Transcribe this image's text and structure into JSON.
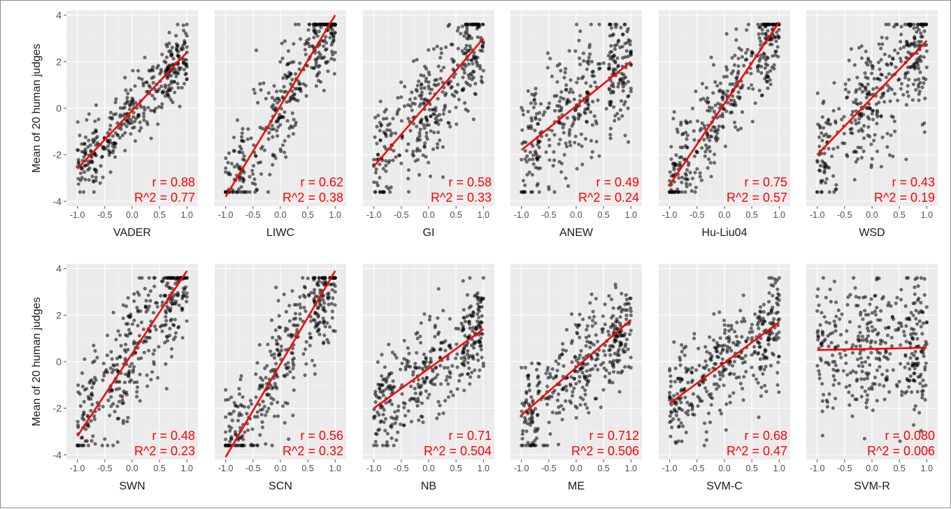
{
  "chart_data": {
    "type": "scatter",
    "ylabel": "Mean of 20 human judges",
    "xlim": [
      -1.2,
      1.2
    ],
    "ylim": [
      -4.2,
      4.2
    ],
    "xticks": [
      -1.0,
      -0.5,
      0.0,
      0.5,
      1.0
    ],
    "xtick_labels": [
      "-1.0",
      "-0.5",
      "0.0",
      "0.5",
      "1.0"
    ],
    "yticks": [
      -4,
      -2,
      0,
      2,
      4
    ],
    "ytick_labels": [
      "-4",
      "-2",
      "0",
      "2",
      "4"
    ],
    "grid": true,
    "point_color": "#000000",
    "fit_line_color": "#ff0000",
    "stat_color": "#ff0000",
    "panel_background": "#ebebeb",
    "panels": [
      {
        "name": "VADER",
        "r_text": "r = 0.88",
        "r2_text": "R^2 = 0.77",
        "r": 0.88,
        "r2": 0.77,
        "fit": {
          "x": [
            -1.0,
            1.0
          ],
          "y": [
            -2.6,
            2.4
          ]
        }
      },
      {
        "name": "LIWC",
        "r_text": "r = 0.62",
        "r2_text": "R^2 = 0.38",
        "r": 0.62,
        "r2": 0.38,
        "fit": {
          "x": [
            -1.0,
            1.0
          ],
          "y": [
            -3.8,
            4.0
          ]
        }
      },
      {
        "name": "GI",
        "r_text": "r = 0.58",
        "r2_text": "R^2 = 0.33",
        "r": 0.58,
        "r2": 0.33,
        "fit": {
          "x": [
            -1.0,
            1.0
          ],
          "y": [
            -2.5,
            3.0
          ]
        }
      },
      {
        "name": "ANEW",
        "r_text": "r = 0.49",
        "r2_text": "R^2 = 0.24",
        "r": 0.49,
        "r2": 0.24,
        "fit": {
          "x": [
            -1.0,
            1.0
          ],
          "y": [
            -1.8,
            2.0
          ]
        }
      },
      {
        "name": "Hu-Liu04",
        "r_text": "r = 0.75",
        "r2_text": "R^2 = 0.57",
        "r": 0.75,
        "r2": 0.57,
        "fit": {
          "x": [
            -1.0,
            1.0
          ],
          "y": [
            -3.3,
            3.7
          ]
        }
      },
      {
        "name": "WSD",
        "r_text": "r = 0.43",
        "r2_text": "R^2 = 0.19",
        "r": 0.43,
        "r2": 0.19,
        "fit": {
          "x": [
            -1.0,
            1.0
          ],
          "y": [
            -2.0,
            2.9
          ]
        }
      },
      {
        "name": "SWN",
        "r_text": "r = 0.48",
        "r2_text": "R^2 = 0.23",
        "r": 0.48,
        "r2": 0.23,
        "fit": {
          "x": [
            -1.0,
            1.0
          ],
          "y": [
            -3.2,
            3.9
          ]
        }
      },
      {
        "name": "SCN",
        "r_text": "r = 0.56",
        "r2_text": "R^2 = 0.32",
        "r": 0.56,
        "r2": 0.32,
        "fit": {
          "x": [
            -1.0,
            1.0
          ],
          "y": [
            -4.1,
            3.9
          ]
        }
      },
      {
        "name": "NB",
        "r_text": "r = 0.71",
        "r2_text": "R^2 = 0.504",
        "r": 0.71,
        "r2": 0.504,
        "fit": {
          "x": [
            -1.0,
            1.0
          ],
          "y": [
            -2.0,
            1.4
          ]
        }
      },
      {
        "name": "ME",
        "r_text": "r = 0.712",
        "r2_text": "R^2 = 0.506",
        "r": 0.712,
        "r2": 0.506,
        "fit": {
          "x": [
            -1.0,
            1.0
          ],
          "y": [
            -2.3,
            1.8
          ]
        }
      },
      {
        "name": "SVM-C",
        "r_text": "r = 0.68",
        "r2_text": "R^2 = 0.47",
        "r": 0.68,
        "r2": 0.47,
        "fit": {
          "x": [
            -1.0,
            1.0
          ],
          "y": [
            -1.8,
            1.7
          ]
        }
      },
      {
        "name": "SVM-R",
        "r_text": "r = 0.080",
        "r2_text": "R^2 = 0.006",
        "r": 0.08,
        "r2": 0.006,
        "fit": {
          "x": [
            -1.0,
            1.0
          ],
          "y": [
            0.5,
            0.6
          ]
        }
      }
    ]
  }
}
